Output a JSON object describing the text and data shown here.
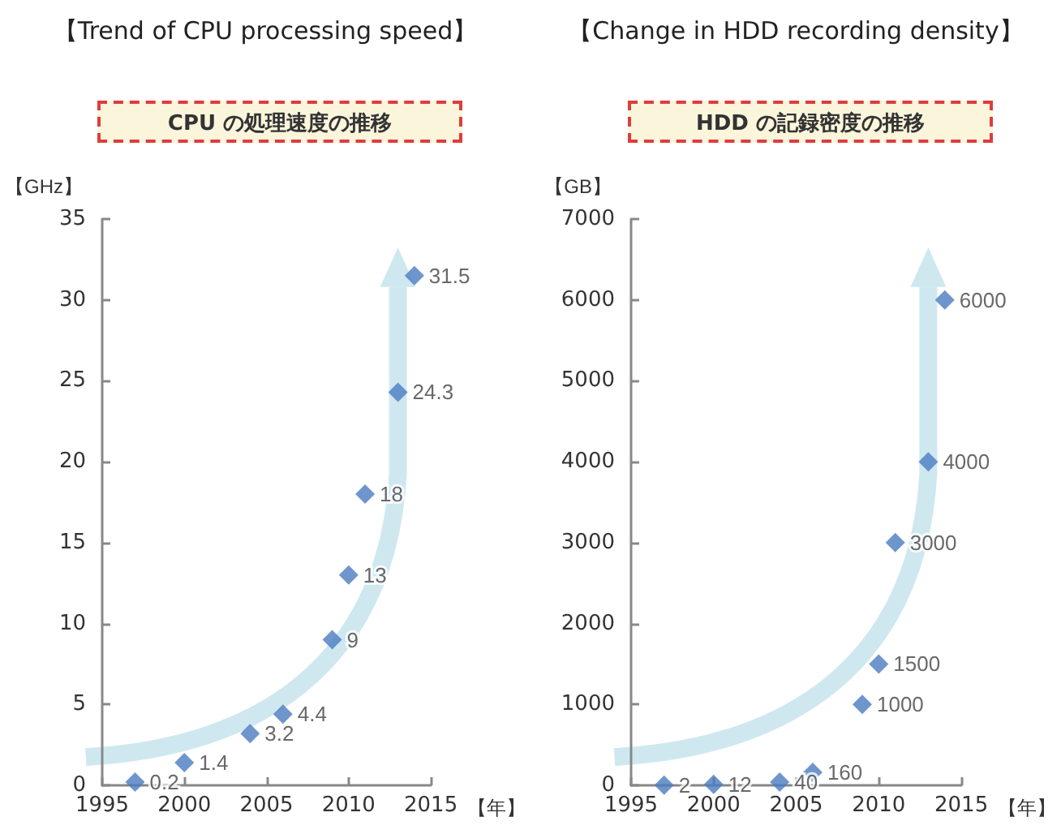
{
  "chart_data": [
    {
      "type": "scatter",
      "title": "【Trend of CPU processing speed】",
      "subtitle": "CPU の処理速度の推移",
      "xlabel": "【年】",
      "ylabel": "【GHz】",
      "x": [
        1997,
        2000,
        2004,
        2006,
        2009,
        2010,
        2011,
        2013,
        2014
      ],
      "values": [
        0.2,
        1.4,
        3.2,
        4.4,
        9,
        13,
        18,
        24.3,
        31.5
      ],
      "color": "#4a7cc0",
      "xlim": [
        1995,
        2015
      ],
      "xticks": [
        1995,
        2000,
        2005,
        2010,
        2015
      ],
      "ylim": [
        0,
        35
      ],
      "yticks": [
        0,
        5,
        10,
        15,
        20,
        25,
        30,
        35
      ],
      "marker": "diamond",
      "data_labels": true
    },
    {
      "type": "scatter",
      "title": "【Change in HDD recording density】",
      "subtitle": "HDD の記録密度の推移",
      "xlabel": "【年】",
      "ylabel": "【GB】",
      "x": [
        1997,
        2000,
        2004,
        2006,
        2009,
        2010,
        2011,
        2013,
        2014
      ],
      "values": [
        2,
        12,
        40,
        160,
        1000,
        1500,
        3000,
        4000,
        6000
      ],
      "color": "#4a7cc0",
      "xlim": [
        1995,
        2015
      ],
      "xticks": [
        1995,
        2000,
        2005,
        2010,
        2015
      ],
      "ylim": [
        0,
        7000
      ],
      "yticks": [
        0,
        1000,
        2000,
        3000,
        4000,
        5000,
        6000,
        7000
      ],
      "marker": "diamond",
      "data_labels": true
    }
  ]
}
